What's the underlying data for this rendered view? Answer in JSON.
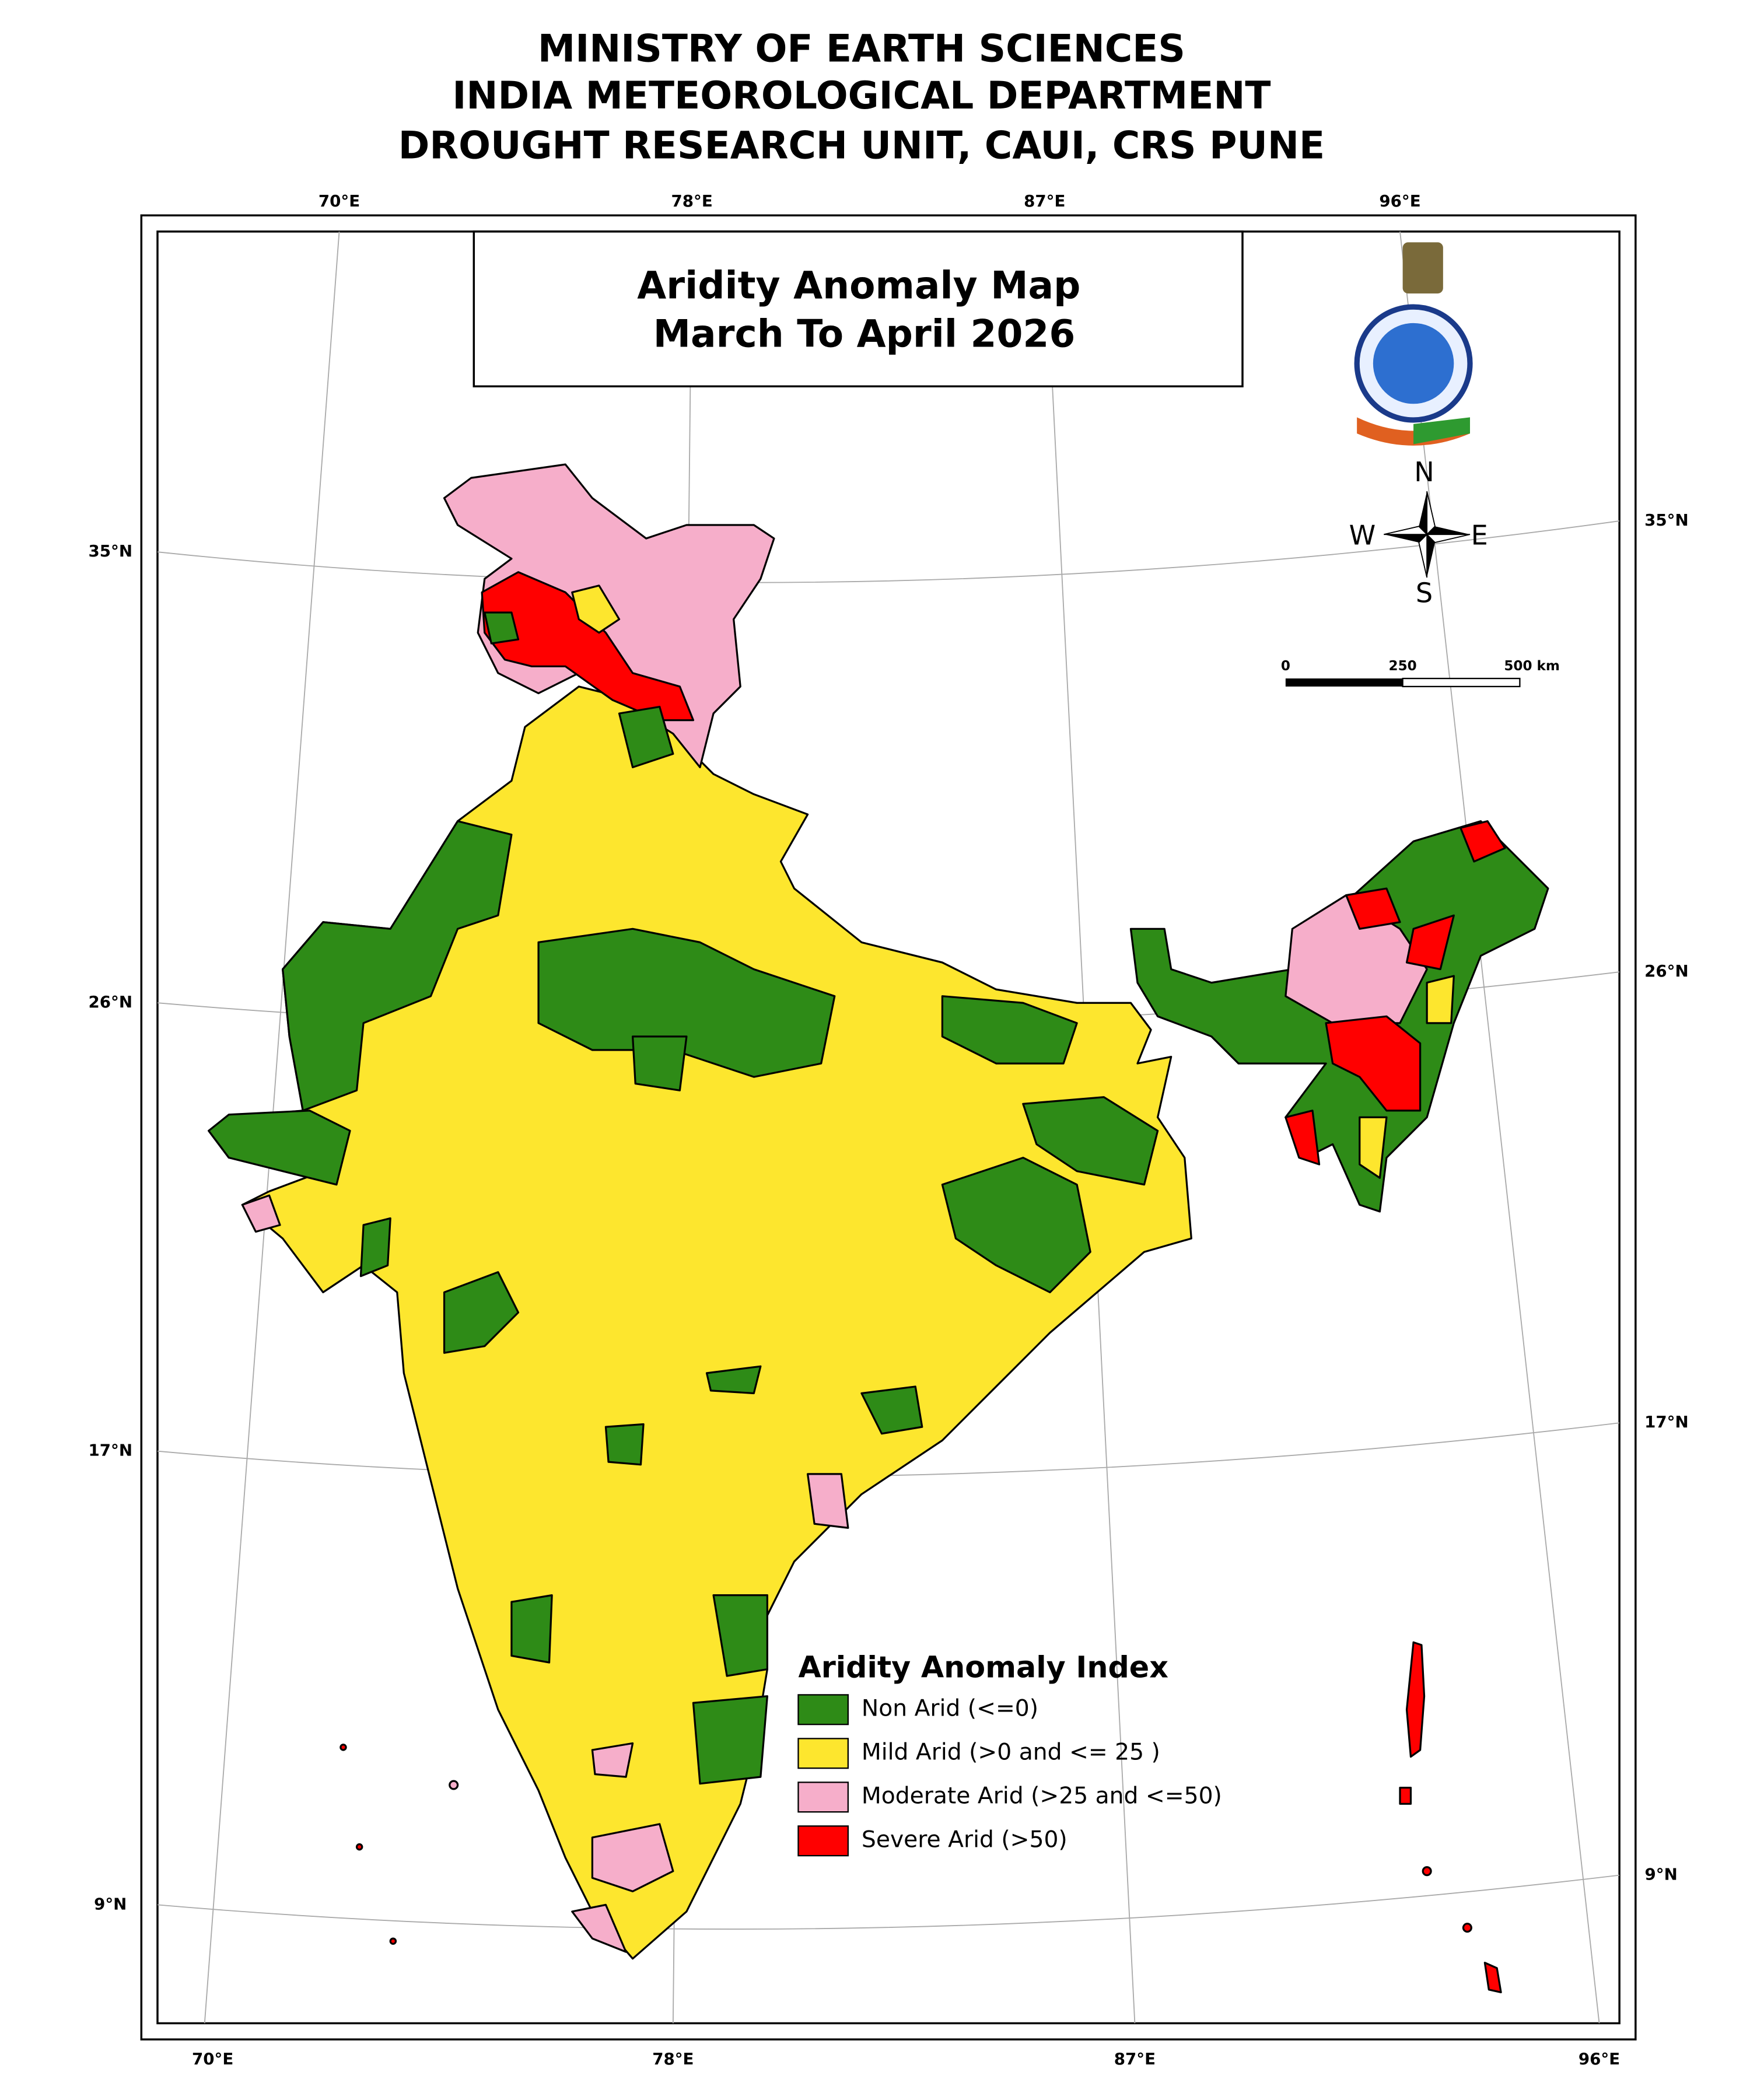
{
  "header": {
    "lines": [
      "MINISTRY OF EARTH SCIENCES",
      "INDIA METEOROLOGICAL DEPARTMENT",
      "DROUGHT RESEARCH UNIT, CAUI, CRS PUNE"
    ]
  },
  "map": {
    "title": [
      "Aridity Anomaly Map",
      "March To April 2026"
    ],
    "graticule": {
      "top": [
        "70°E",
        "78°E",
        "87°E",
        "96°E"
      ],
      "bottom": [
        "70°E",
        "78°E",
        "87°E",
        "96°E"
      ],
      "left": [
        "35°N",
        "26°N",
        "17°N",
        "9°N"
      ],
      "right": [
        "35°N",
        "26°N",
        "17°N",
        "9°N"
      ]
    },
    "compass": {
      "n": "N",
      "e": "E",
      "s": "S",
      "w": "W"
    },
    "scale_bar": [
      "0",
      "250",
      "500 km"
    ],
    "legend": {
      "title": "Aridity Anomaly Index",
      "items": [
        {
          "label": "Non Arid (<=0)",
          "color": "#2e8b17"
        },
        {
          "label": "Mild Arid (>0 and <= 25 )",
          "color": "#fde62e"
        },
        {
          "label": "Moderate Arid (>25 and <=50)",
          "color": "#f6aeca"
        },
        {
          "label": "Severe Arid (>50)",
          "color": "#ff0000"
        }
      ]
    }
  }
}
